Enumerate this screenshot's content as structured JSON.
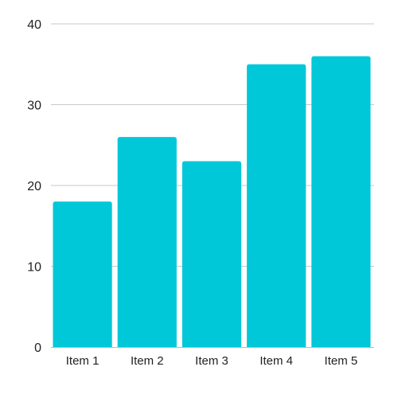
{
  "chart_data": {
    "type": "bar",
    "title": "",
    "xlabel": "",
    "ylabel": "",
    "categories": [
      "Item 1",
      "Item 2",
      "Item 3",
      "Item 4",
      "Item 5"
    ],
    "values": [
      18,
      26,
      23,
      35,
      36
    ],
    "ylim": [
      0,
      40
    ],
    "yticks": [
      0,
      10,
      20,
      30,
      40
    ],
    "grid": true,
    "bar_color": "#00C8D8",
    "grid_color": "#C8C8C8",
    "legend": "none"
  }
}
